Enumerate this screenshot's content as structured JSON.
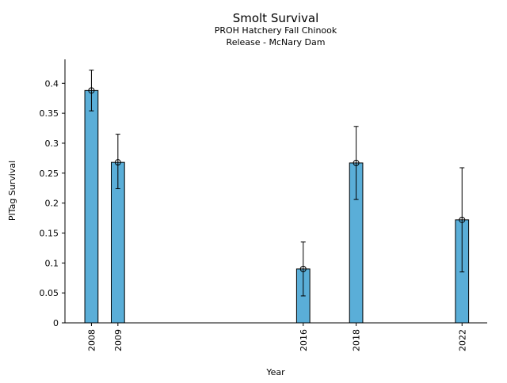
{
  "chart_data": {
    "type": "bar",
    "title": "Smolt Survival",
    "subtitle_lines": [
      "PROH Hatchery Fall Chinook",
      "Release - McNary Dam"
    ],
    "xlabel": "Year",
    "ylabel": "PITag Survival",
    "ylim": [
      0,
      0.44
    ],
    "yticks": [
      0,
      0.05,
      0.1,
      0.15,
      0.2,
      0.25,
      0.3,
      0.35,
      0.4
    ],
    "ytick_labels": [
      "0",
      "0.05",
      "0.1",
      "0.15",
      "0.2",
      "0.25",
      "0.3",
      "0.35",
      "0.4"
    ],
    "xlim": [
      2007.0,
      2022.95
    ],
    "categories": [
      "2008",
      "2009",
      "2016",
      "2018",
      "2022"
    ],
    "x": [
      2008,
      2009,
      2016,
      2018,
      2022
    ],
    "values": [
      0.388,
      0.268,
      0.09,
      0.267,
      0.172
    ],
    "error_low": [
      0.354,
      0.224,
      0.045,
      0.206,
      0.085
    ],
    "error_high": [
      0.422,
      0.315,
      0.135,
      0.328,
      0.259
    ],
    "bar_color": "#5aaed8",
    "bar_edge_color": "#000000",
    "grid": false
  }
}
